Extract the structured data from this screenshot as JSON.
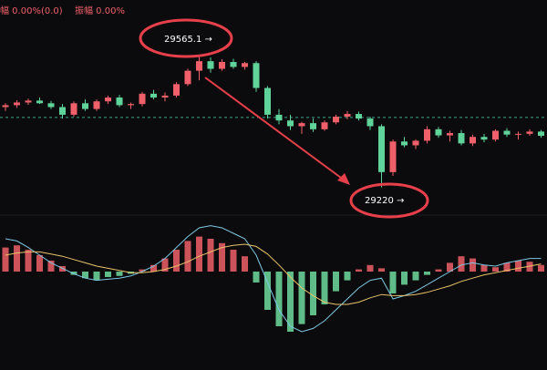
{
  "chart_data": [
    {
      "type": "candlestick",
      "info_labels": [
        "幅 0.00%(0.0)",
        "振幅 0.00%"
      ],
      "annotations": [
        "29565.1 →",
        "29220 →"
      ],
      "up_color": "#f0606a",
      "down_color": "#5fd39a",
      "ylim": [
        29150,
        29710
      ],
      "reference_line": 29403,
      "open": [
        29430,
        29435,
        29442,
        29447,
        29440,
        29430,
        29410,
        29440,
        29425,
        29445,
        29455,
        29435,
        29438,
        29465,
        29455,
        29460,
        29490,
        29525,
        29550,
        29530,
        29548,
        29535,
        29545,
        29480,
        29410,
        29395,
        29380,
        29388,
        29372,
        29390,
        29405,
        29412,
        29400,
        29380,
        29260,
        29340,
        29330,
        29342,
        29372,
        29356,
        29362,
        29335,
        29352,
        29345,
        29368,
        29358,
        29360,
        29366
      ],
      "high": [
        29440,
        29448,
        29452,
        29455,
        29446,
        29438,
        29445,
        29450,
        29450,
        29460,
        29462,
        29442,
        29470,
        29475,
        29468,
        29495,
        29530,
        29565.1,
        29560,
        29555,
        29556,
        29548,
        29550,
        29485,
        29425,
        29410,
        29392,
        29400,
        29395,
        29410,
        29420,
        29418,
        29405,
        29385,
        29345,
        29352,
        29345,
        29380,
        29378,
        29368,
        29370,
        29358,
        29360,
        29372,
        29375,
        29366,
        29372,
        29370
      ],
      "low": [
        29420,
        29428,
        29436,
        29438,
        29425,
        29400,
        29405,
        29420,
        29420,
        29438,
        29430,
        29425,
        29432,
        29450,
        29445,
        29455,
        29485,
        29500,
        29520,
        29525,
        29530,
        29528,
        29470,
        29400,
        29385,
        29370,
        29360,
        29365,
        29368,
        29385,
        29398,
        29395,
        29370,
        29220,
        29250,
        29325,
        29320,
        29335,
        29350,
        29340,
        29330,
        29328,
        29338,
        29340,
        29352,
        29345,
        29355,
        29350
      ],
      "close": [
        29435,
        29442,
        29447,
        29440,
        29430,
        29410,
        29440,
        29425,
        29445,
        29455,
        29435,
        29438,
        29465,
        29455,
        29460,
        29490,
        29525,
        29550,
        29530,
        29548,
        29535,
        29545,
        29480,
        29410,
        29395,
        29380,
        29388,
        29372,
        29390,
        29405,
        29412,
        29400,
        29380,
        29260,
        29340,
        29330,
        29342,
        29372,
        29356,
        29362,
        29335,
        29352,
        29345,
        29368,
        29358,
        29360,
        29366,
        29355
      ]
    },
    {
      "type": "macd",
      "ylim": [
        -60,
        50
      ],
      "pos_color": "#f0606a",
      "neg_color": "#6fdca0",
      "histogram": [
        22,
        24,
        20,
        15,
        10,
        5,
        -3,
        -6,
        -8,
        -5,
        -4,
        -2,
        2,
        6,
        12,
        20,
        28,
        32,
        30,
        26,
        20,
        14,
        -10,
        -35,
        -50,
        -55,
        -48,
        -40,
        -30,
        -18,
        -8,
        2,
        6,
        3,
        -20,
        -12,
        -8,
        -3,
        2,
        8,
        14,
        12,
        6,
        4,
        8,
        10,
        9,
        6
      ],
      "series": [
        {
          "color": "#7ec8e3",
          "values": [
            30,
            28,
            22,
            15,
            8,
            3,
            -2,
            -6,
            -8,
            -7,
            -6,
            -4,
            0,
            5,
            12,
            22,
            32,
            40,
            42,
            40,
            35,
            30,
            15,
            -10,
            -35,
            -50,
            -55,
            -52,
            -45,
            -35,
            -25,
            -15,
            -8,
            -6,
            -25,
            -22,
            -18,
            -12,
            -6,
            0,
            6,
            8,
            6,
            5,
            8,
            10,
            12,
            12
          ]
        },
        {
          "color": "#e8c36a",
          "values": [
            15,
            17,
            18,
            18,
            16,
            14,
            11,
            8,
            5,
            3,
            1,
            -1,
            -1,
            0,
            2,
            5,
            9,
            14,
            18,
            22,
            24,
            25,
            23,
            16,
            6,
            -5,
            -15,
            -22,
            -28,
            -30,
            -30,
            -28,
            -24,
            -21,
            -22,
            -22,
            -21,
            -19,
            -16,
            -13,
            -9,
            -6,
            -3,
            -1,
            1,
            3,
            5,
            7
          ]
        }
      ]
    }
  ]
}
